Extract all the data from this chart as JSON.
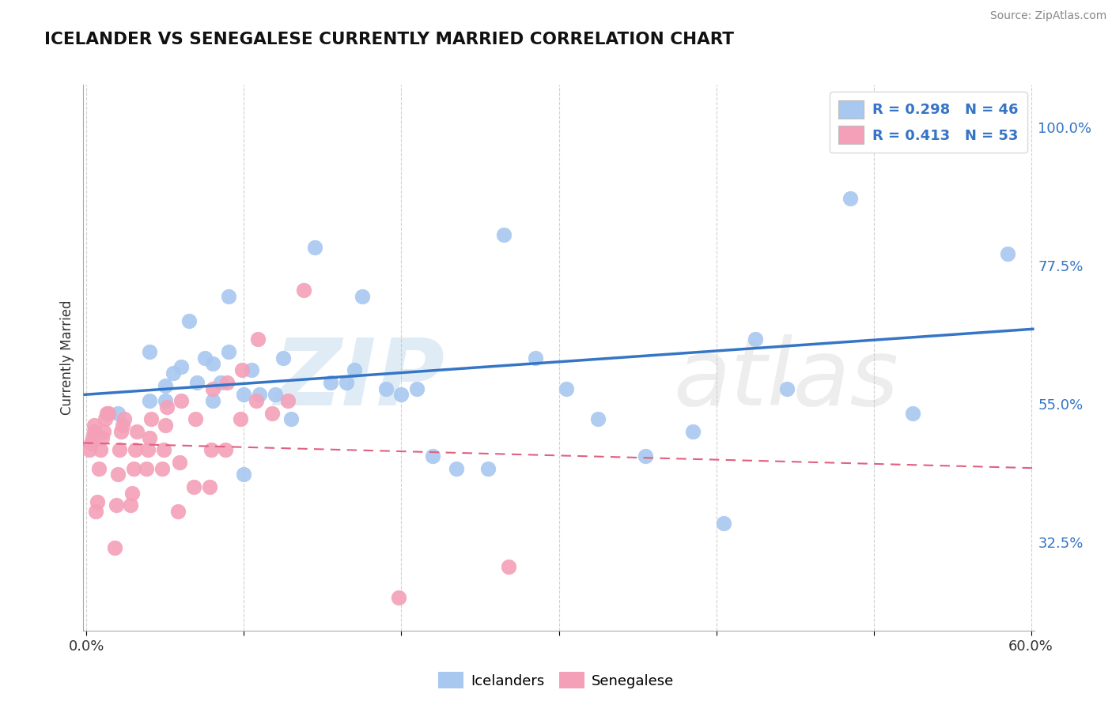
{
  "title": "ICELANDER VS SENEGALESE CURRENTLY MARRIED CORRELATION CHART",
  "source": "Source: ZipAtlas.com",
  "ylabel": "Currently Married",
  "xlim": [
    -0.002,
    0.602
  ],
  "ylim": [
    0.18,
    1.07
  ],
  "yticks": [
    0.325,
    0.55,
    0.775,
    1.0
  ],
  "ytick_labels": [
    "32.5%",
    "55.0%",
    "77.5%",
    "100.0%"
  ],
  "xticks": [
    0.0,
    0.1,
    0.2,
    0.3,
    0.4,
    0.5,
    0.6
  ],
  "xtick_labels": [
    "0.0%",
    "",
    "",
    "",
    "",
    "",
    "60.0%"
  ],
  "legend_R1": "R = 0.298",
  "legend_N1": "N = 46",
  "legend_R2": "R = 0.413",
  "legend_N2": "N = 53",
  "icelander_color": "#a8c8f0",
  "senegalese_color": "#f4a0b8",
  "regression_blue": "#3575c5",
  "regression_pink": "#e06080",
  "background_color": "#ffffff",
  "icelander_x": [
    0.02,
    0.04,
    0.04,
    0.05,
    0.05,
    0.055,
    0.06,
    0.065,
    0.07,
    0.075,
    0.08,
    0.08,
    0.085,
    0.09,
    0.09,
    0.1,
    0.1,
    0.105,
    0.11,
    0.12,
    0.125,
    0.13,
    0.145,
    0.155,
    0.165,
    0.17,
    0.175,
    0.19,
    0.2,
    0.21,
    0.22,
    0.235,
    0.255,
    0.265,
    0.285,
    0.305,
    0.325,
    0.355,
    0.385,
    0.405,
    0.425,
    0.445,
    0.485,
    0.525,
    0.565,
    0.585
  ],
  "icelander_y": [
    0.535,
    0.635,
    0.555,
    0.555,
    0.58,
    0.6,
    0.61,
    0.685,
    0.585,
    0.625,
    0.555,
    0.615,
    0.585,
    0.635,
    0.725,
    0.435,
    0.565,
    0.605,
    0.565,
    0.565,
    0.625,
    0.525,
    0.805,
    0.585,
    0.585,
    0.605,
    0.725,
    0.575,
    0.565,
    0.575,
    0.465,
    0.445,
    0.445,
    0.825,
    0.625,
    0.575,
    0.525,
    0.465,
    0.505,
    0.355,
    0.655,
    0.575,
    0.885,
    0.535,
    0.975,
    0.795
  ],
  "senegalese_x": [
    0.002,
    0.003,
    0.004,
    0.005,
    0.005,
    0.006,
    0.007,
    0.008,
    0.009,
    0.01,
    0.011,
    0.012,
    0.013,
    0.014,
    0.018,
    0.019,
    0.02,
    0.021,
    0.022,
    0.023,
    0.024,
    0.028,
    0.029,
    0.03,
    0.031,
    0.032,
    0.038,
    0.039,
    0.04,
    0.041,
    0.048,
    0.049,
    0.05,
    0.051,
    0.058,
    0.059,
    0.06,
    0.068,
    0.069,
    0.078,
    0.079,
    0.08,
    0.088,
    0.089,
    0.098,
    0.099,
    0.108,
    0.109,
    0.118,
    0.128,
    0.138,
    0.198,
    0.268
  ],
  "senegalese_y": [
    0.475,
    0.485,
    0.495,
    0.505,
    0.515,
    0.375,
    0.39,
    0.445,
    0.475,
    0.495,
    0.505,
    0.525,
    0.535,
    0.535,
    0.315,
    0.385,
    0.435,
    0.475,
    0.505,
    0.515,
    0.525,
    0.385,
    0.405,
    0.445,
    0.475,
    0.505,
    0.445,
    0.475,
    0.495,
    0.525,
    0.445,
    0.475,
    0.515,
    0.545,
    0.375,
    0.455,
    0.555,
    0.415,
    0.525,
    0.415,
    0.475,
    0.575,
    0.475,
    0.585,
    0.525,
    0.605,
    0.555,
    0.655,
    0.535,
    0.555,
    0.735,
    0.235,
    0.285
  ]
}
